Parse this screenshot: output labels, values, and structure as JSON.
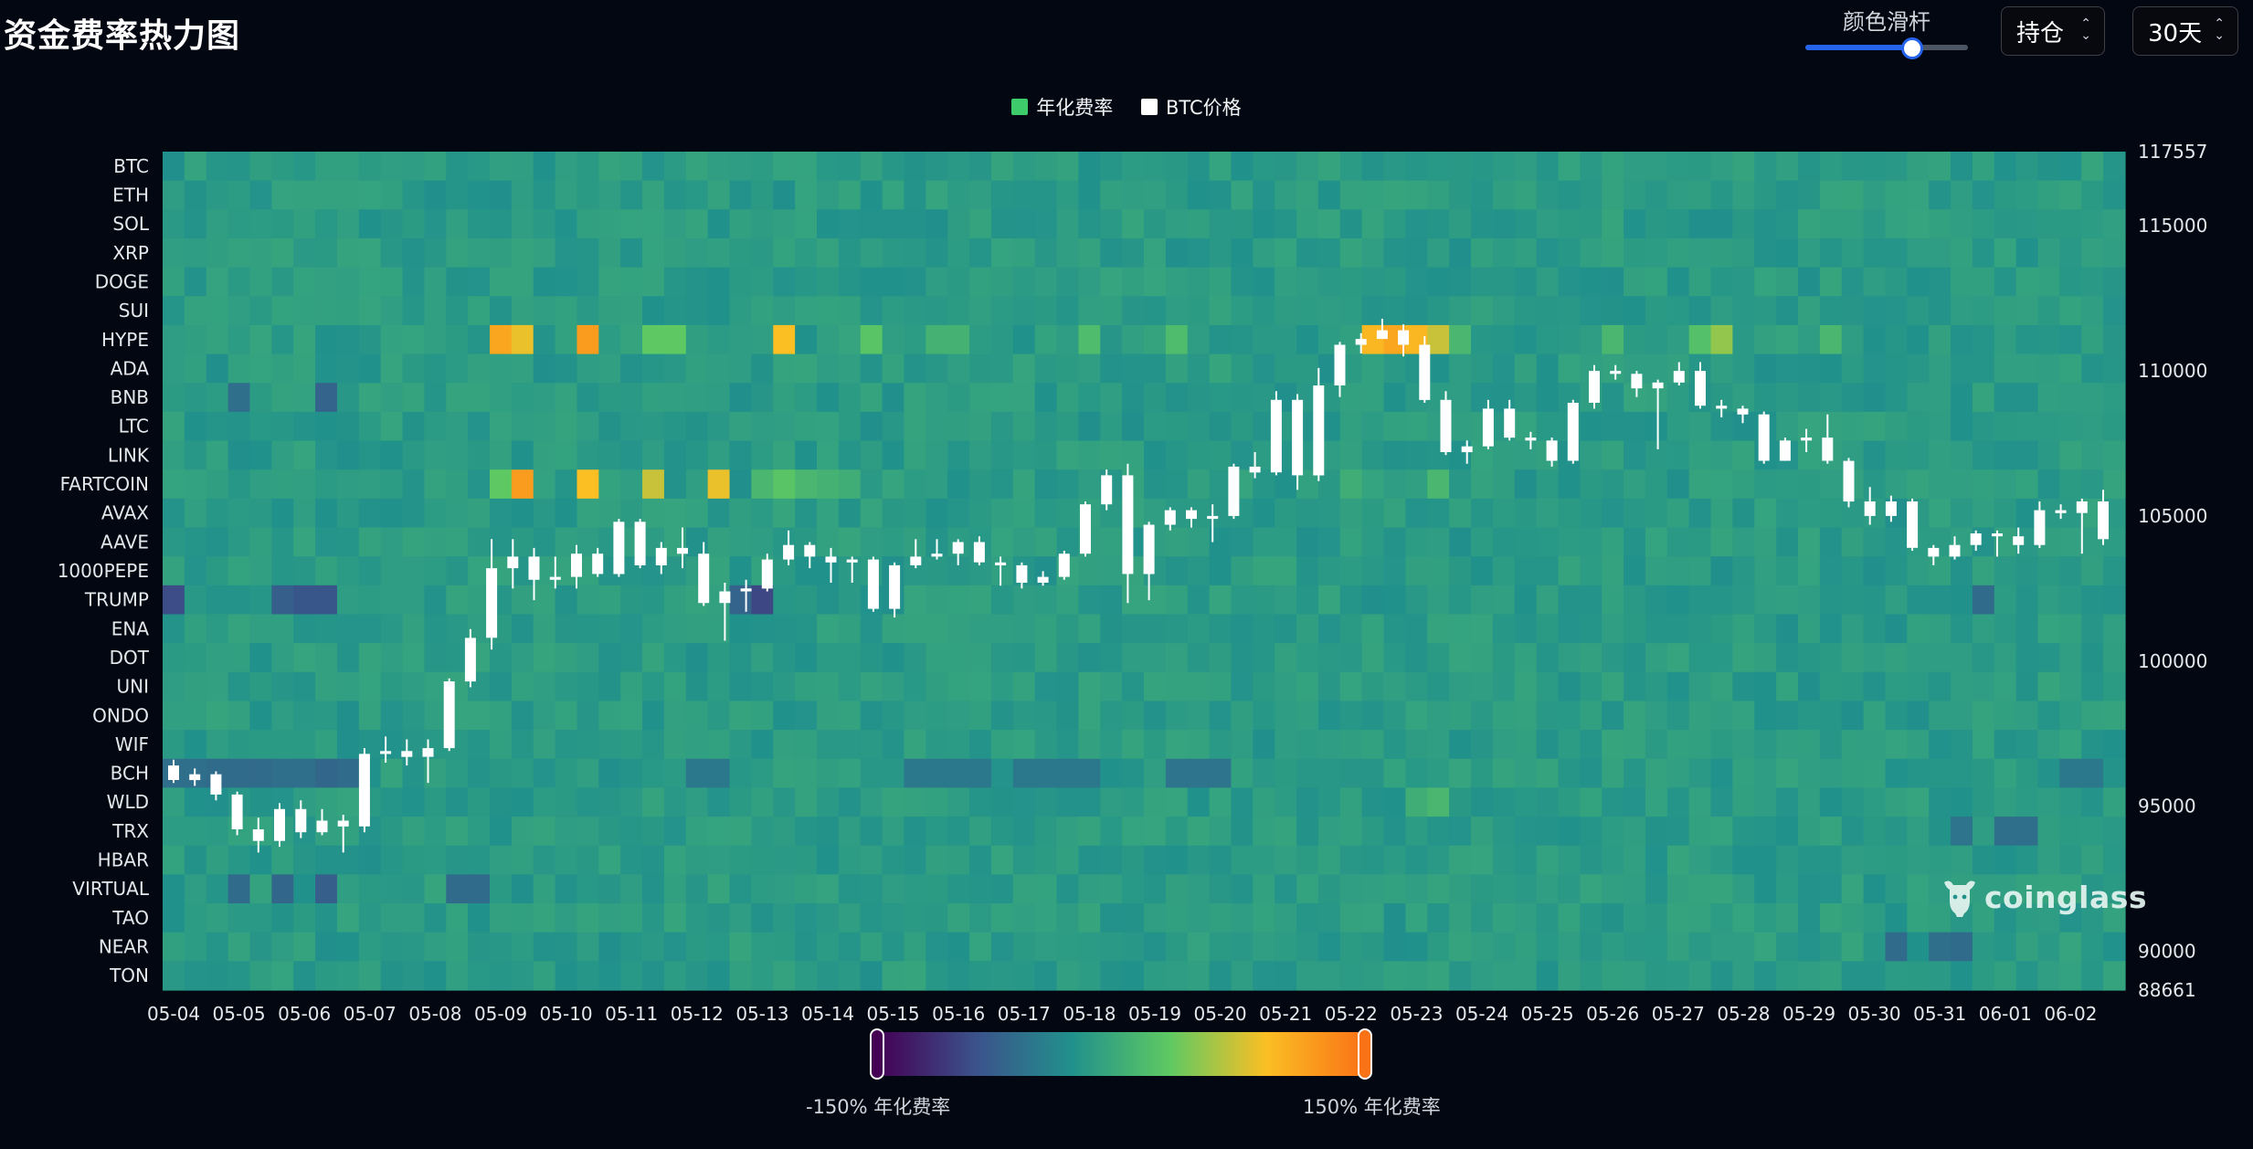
{
  "header": {
    "title": "资金费率热力图",
    "slider_label": "颜色滑杆",
    "slider_value": 0.66,
    "type_select": "持仓",
    "range_select": "30天"
  },
  "legend": [
    {
      "label": "年化费率",
      "color": "#3dcb6c"
    },
    {
      "label": "BTC价格",
      "color": "#ffffff"
    }
  ],
  "colorbar": {
    "min_label": "-150% 年化费率",
    "max_label": "150% 年化费率"
  },
  "watermark": {
    "text": "coinglass",
    "icon": "coinglass-bull-icon"
  },
  "chart_data": {
    "type": "heatmap",
    "title": "资金费率热力图",
    "y_categories": [
      "BTC",
      "ETH",
      "SOL",
      "XRP",
      "DOGE",
      "SUI",
      "HYPE",
      "ADA",
      "BNB",
      "LTC",
      "LINK",
      "FARTCOIN",
      "AVAX",
      "AAVE",
      "1000PEPE",
      "TRUMP",
      "ENA",
      "DOT",
      "UNI",
      "ONDO",
      "WIF",
      "BCH",
      "WLD",
      "TRX",
      "HBAR",
      "VIRTUAL",
      "TAO",
      "NEAR",
      "TON"
    ],
    "x_tick_labels": [
      "05-04",
      "05-05",
      "05-06",
      "05-07",
      "05-08",
      "05-09",
      "05-10",
      "05-11",
      "05-12",
      "05-13",
      "05-14",
      "05-15",
      "05-16",
      "05-17",
      "05-18",
      "05-19",
      "05-20",
      "05-21",
      "05-22",
      "05-23",
      "05-24",
      "05-25",
      "05-26",
      "05-27",
      "05-28",
      "05-29",
      "05-30",
      "05-31",
      "06-01",
      "06-02"
    ],
    "value_unit": "年化费率 %",
    "color_range": [
      -150,
      150
    ],
    "colormap": "viridis-orange",
    "cells_per_day": 3,
    "base_value": 10,
    "highlights": [
      {
        "coin": "HYPE",
        "day": "05-09",
        "values": [
          120,
          100,
          null
        ]
      },
      {
        "coin": "HYPE",
        "day": "05-10",
        "values": [
          null,
          125,
          null
        ]
      },
      {
        "coin": "HYPE",
        "day": "05-11",
        "values": [
          null,
          60,
          60
        ]
      },
      {
        "coin": "HYPE",
        "day": "05-13",
        "values": [
          null,
          105,
          null
        ]
      },
      {
        "coin": "HYPE",
        "day": "05-14",
        "values": [
          null,
          null,
          55
        ]
      },
      {
        "coin": "HYPE",
        "day": "05-15",
        "values": [
          null,
          null,
          35
        ]
      },
      {
        "coin": "HYPE",
        "day": "05-16",
        "values": [
          35,
          null,
          null
        ]
      },
      {
        "coin": "HYPE",
        "day": "05-18",
        "values": [
          45,
          null,
          null
        ]
      },
      {
        "coin": "HYPE",
        "day": "05-19",
        "values": [
          null,
          45,
          null
        ]
      },
      {
        "coin": "HYPE",
        "day": "05-22",
        "values": [
          null,
          110,
          120
        ]
      },
      {
        "coin": "HYPE",
        "day": "05-23",
        "values": [
          110,
          90,
          40
        ]
      },
      {
        "coin": "HYPE",
        "day": "05-26",
        "values": [
          40,
          null,
          null
        ]
      },
      {
        "coin": "HYPE",
        "day": "05-27",
        "values": [
          null,
          50,
          75
        ]
      },
      {
        "coin": "HYPE",
        "day": "05-29",
        "values": [
          null,
          40,
          null
        ]
      },
      {
        "coin": "FARTCOIN",
        "day": "05-09",
        "values": [
          60,
          125,
          null
        ]
      },
      {
        "coin": "FARTCOIN",
        "day": "05-10",
        "values": [
          null,
          105,
          null
        ]
      },
      {
        "coin": "FARTCOIN",
        "day": "05-11",
        "values": [
          null,
          90,
          null
        ]
      },
      {
        "coin": "FARTCOIN",
        "day": "05-12",
        "values": [
          null,
          100,
          null
        ]
      },
      {
        "coin": "FARTCOIN",
        "day": "05-13",
        "values": [
          40,
          55,
          40
        ]
      },
      {
        "coin": "FARTCOIN",
        "day": "05-14",
        "values": [
          35,
          30,
          null
        ]
      },
      {
        "coin": "FARTCOIN",
        "day": "05-22",
        "values": [
          30,
          null,
          null
        ]
      },
      {
        "coin": "FARTCOIN",
        "day": "05-23",
        "values": [
          null,
          40,
          null
        ]
      },
      {
        "coin": "TRUMP",
        "day": "05-04",
        "values": [
          -80,
          null,
          null
        ]
      },
      {
        "coin": "TRUMP",
        "day": "05-05",
        "values": [
          null,
          null,
          -60
        ]
      },
      {
        "coin": "TRUMP",
        "day": "05-06",
        "values": [
          -70,
          -70,
          null
        ]
      },
      {
        "coin": "TRUMP",
        "day": "05-12",
        "values": [
          null,
          null,
          -55
        ]
      },
      {
        "coin": "TRUMP",
        "day": "05-13",
        "values": [
          -85,
          null,
          null
        ]
      },
      {
        "coin": "TRUMP",
        "day": "05-31",
        "values": [
          null,
          null,
          -45
        ]
      },
      {
        "coin": "BCH",
        "day": "05-04",
        "values": [
          -40,
          -40,
          -45
        ]
      },
      {
        "coin": "BCH",
        "day": "05-05",
        "values": [
          -45,
          -45,
          -40
        ]
      },
      {
        "coin": "BCH",
        "day": "05-06",
        "values": [
          -40,
          -50,
          -45
        ]
      },
      {
        "coin": "BCH",
        "day": "05-12",
        "values": [
          -30,
          -30,
          null
        ]
      },
      {
        "coin": "BCH",
        "day": "05-15",
        "values": [
          null,
          -30,
          -30
        ]
      },
      {
        "coin": "BCH",
        "day": "05-16",
        "values": [
          -30,
          -30,
          null
        ]
      },
      {
        "coin": "BCH",
        "day": "05-17",
        "values": [
          -30,
          -30,
          -30
        ]
      },
      {
        "coin": "BCH",
        "day": "05-18",
        "values": [
          -30,
          null,
          null
        ]
      },
      {
        "coin": "BCH",
        "day": "05-19",
        "values": [
          null,
          -35,
          -35
        ]
      },
      {
        "coin": "BCH",
        "day": "05-20",
        "values": [
          -35,
          null,
          null
        ]
      },
      {
        "coin": "BCH",
        "day": "06-02",
        "values": [
          -30,
          -30,
          null
        ]
      },
      {
        "coin": "BNB",
        "day": "05-05",
        "values": [
          -40,
          null,
          null
        ]
      },
      {
        "coin": "BNB",
        "day": "05-06",
        "values": [
          null,
          -55,
          null
        ]
      },
      {
        "coin": "VIRTUAL",
        "day": "05-05",
        "values": [
          -45,
          null,
          -50
        ]
      },
      {
        "coin": "VIRTUAL",
        "day": "05-06",
        "values": [
          null,
          -60,
          null
        ]
      },
      {
        "coin": "VIRTUAL",
        "day": "05-08",
        "values": [
          null,
          -45,
          -45
        ]
      },
      {
        "coin": "NEAR",
        "day": "05-30",
        "values": [
          null,
          -45,
          null
        ]
      },
      {
        "coin": "NEAR",
        "day": "05-31",
        "values": [
          -40,
          -45,
          null
        ]
      },
      {
        "coin": "TRX",
        "day": "05-31",
        "values": [
          null,
          -35,
          null
        ]
      },
      {
        "coin": "TRX",
        "day": "06-01",
        "values": [
          -40,
          -40,
          null
        ]
      },
      {
        "coin": "WLD",
        "day": "05-23",
        "values": [
          30,
          40,
          null
        ]
      }
    ],
    "price_axis": {
      "label": "BTC价格",
      "ticks": [
        88661,
        90000,
        95000,
        100000,
        105000,
        110000,
        115000,
        117557
      ],
      "range": [
        88661,
        117557
      ]
    },
    "btc_candles": [
      [
        96400,
        95900,
        96600,
        95800
      ],
      [
        95900,
        96100,
        96300,
        95700
      ],
      [
        96100,
        95400,
        96200,
        95200
      ],
      [
        95400,
        94200,
        95500,
        94000
      ],
      [
        94200,
        93800,
        94600,
        93400
      ],
      [
        93800,
        94900,
        95100,
        93600
      ],
      [
        94900,
        94100,
        95200,
        93900
      ],
      [
        94100,
        94500,
        94900,
        94000
      ],
      [
        94500,
        94300,
        94700,
        93400
      ],
      [
        94300,
        96800,
        97000,
        94100
      ],
      [
        96800,
        96900,
        97400,
        96500
      ],
      [
        96900,
        96700,
        97300,
        96400
      ],
      [
        96700,
        97000,
        97300,
        95800
      ],
      [
        97000,
        99300,
        99400,
        96900
      ],
      [
        99300,
        100800,
        101100,
        99100
      ],
      [
        100800,
        103200,
        104200,
        100400
      ],
      [
        103200,
        103600,
        104200,
        102500
      ],
      [
        103600,
        102800,
        103900,
        102100
      ],
      [
        102800,
        102900,
        103600,
        102500
      ],
      [
        102900,
        103700,
        104000,
        102500
      ],
      [
        103700,
        103000,
        103900,
        102900
      ],
      [
        103000,
        104800,
        104900,
        102900
      ],
      [
        104800,
        103300,
        104900,
        103200
      ],
      [
        103300,
        103900,
        104100,
        103000
      ],
      [
        103900,
        103700,
        104600,
        103200
      ],
      [
        103700,
        102000,
        104100,
        101900
      ],
      [
        102000,
        102400,
        102700,
        100700
      ],
      [
        102400,
        102500,
        102800,
        101700
      ],
      [
        102500,
        103500,
        103700,
        102400
      ],
      [
        103500,
        104000,
        104500,
        103300
      ],
      [
        104000,
        103600,
        104100,
        103200
      ],
      [
        103600,
        103400,
        103900,
        102700
      ],
      [
        103400,
        103500,
        103600,
        102700
      ],
      [
        103500,
        101800,
        103600,
        101700
      ],
      [
        101800,
        103300,
        103400,
        101500
      ],
      [
        103300,
        103600,
        104200,
        103200
      ],
      [
        103600,
        103700,
        104200,
        103500
      ],
      [
        103700,
        104100,
        104200,
        103300
      ],
      [
        104100,
        103400,
        104300,
        103300
      ],
      [
        103400,
        103300,
        103600,
        102600
      ],
      [
        103300,
        102700,
        103400,
        102500
      ],
      [
        102700,
        102900,
        103100,
        102600
      ],
      [
        102900,
        103700,
        103800,
        102800
      ],
      [
        103700,
        105400,
        105500,
        103600
      ],
      [
        105400,
        106400,
        106600,
        105200
      ],
      [
        106400,
        103000,
        106800,
        102000
      ],
      [
        103000,
        104700,
        104800,
        102100
      ],
      [
        104700,
        105200,
        105300,
        104500
      ],
      [
        105200,
        104900,
        105300,
        104600
      ],
      [
        104900,
        105000,
        105400,
        104100
      ],
      [
        105000,
        106700,
        106800,
        104900
      ],
      [
        106700,
        106500,
        107200,
        106300
      ],
      [
        106500,
        109000,
        109300,
        106400
      ],
      [
        109000,
        106400,
        109200,
        105900
      ],
      [
        106400,
        109500,
        110100,
        106200
      ],
      [
        109500,
        110900,
        111000,
        109100
      ],
      [
        110900,
        111100,
        111300,
        110600
      ],
      [
        111100,
        111400,
        111800,
        111200
      ],
      [
        111400,
        110900,
        111600,
        110500
      ],
      [
        110900,
        109000,
        111200,
        108900
      ],
      [
        109000,
        107200,
        109300,
        107100
      ],
      [
        107200,
        107400,
        107600,
        106800
      ],
      [
        107400,
        108700,
        109000,
        107300
      ],
      [
        108700,
        107700,
        109000,
        107600
      ],
      [
        107700,
        107600,
        107900,
        107300
      ],
      [
        107600,
        106900,
        107700,
        106700
      ],
      [
        106900,
        108900,
        109000,
        106800
      ],
      [
        108900,
        110000,
        110200,
        108700
      ],
      [
        110000,
        109900,
        110200,
        109700
      ],
      [
        109900,
        109400,
        110000,
        109100
      ],
      [
        109400,
        109600,
        109700,
        107300
      ],
      [
        109600,
        110000,
        110300,
        109500
      ],
      [
        110000,
        108800,
        110300,
        108700
      ],
      [
        108800,
        108700,
        109000,
        108400
      ],
      [
        108700,
        108500,
        108800,
        108200
      ],
      [
        108500,
        106900,
        108600,
        106800
      ],
      [
        106900,
        107600,
        107700,
        106900
      ],
      [
        107600,
        107700,
        108000,
        107200
      ],
      [
        107700,
        106900,
        108500,
        106800
      ],
      [
        106900,
        105500,
        107000,
        105300
      ],
      [
        105500,
        105000,
        106000,
        104700
      ],
      [
        105000,
        105500,
        105700,
        104800
      ],
      [
        105500,
        103900,
        105600,
        103800
      ],
      [
        103900,
        103600,
        104000,
        103300
      ],
      [
        103600,
        104000,
        104300,
        103500
      ],
      [
        104000,
        104400,
        104500,
        103800
      ],
      [
        104400,
        104300,
        104500,
        103600
      ],
      [
        104300,
        104000,
        104600,
        103700
      ],
      [
        104000,
        105200,
        105500,
        103900
      ],
      [
        105200,
        105100,
        105400,
        104900
      ],
      [
        105100,
        105500,
        105600,
        103700
      ],
      [
        105500,
        104200,
        105900,
        104000
      ]
    ]
  }
}
